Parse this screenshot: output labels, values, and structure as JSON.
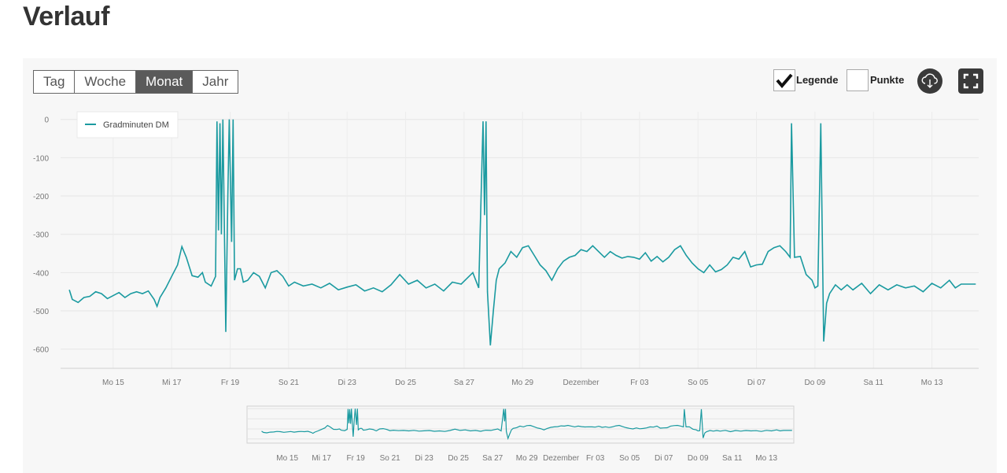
{
  "page": {
    "title": "Verlauf"
  },
  "toolbar": {
    "ranges": [
      "Tag",
      "Woche",
      "Monat",
      "Jahr"
    ],
    "active_range": "Monat",
    "legend_label": "Legende",
    "legend_checked": true,
    "points_label": "Punkte",
    "points_checked": false,
    "download_icon": "cloud-download-icon",
    "fullscreen_icon": "fullscreen-icon"
  },
  "colors": {
    "series": "#1a9aa0",
    "active_button": "#5a5a5a",
    "panel": "#f7f7f7"
  },
  "chart_data": {
    "type": "line",
    "legend": "top-left",
    "grid": true,
    "ylim": [
      -650,
      20
    ],
    "yticks": [
      0,
      -100,
      -200,
      -300,
      -400,
      -500,
      -600
    ],
    "xlim": [
      13.2,
      44.6
    ],
    "x_unit": "day (November 13 = 13, December 1 = 31)",
    "xticks": [
      {
        "x": 15,
        "label": "Mo 15"
      },
      {
        "x": 17,
        "label": "Mi 17"
      },
      {
        "x": 19,
        "label": "Fr 19"
      },
      {
        "x": 21,
        "label": "So 21"
      },
      {
        "x": 23,
        "label": "Di 23"
      },
      {
        "x": 25,
        "label": "Do 25"
      },
      {
        "x": 27,
        "label": "Sa 27"
      },
      {
        "x": 29,
        "label": "Mo 29"
      },
      {
        "x": 31,
        "label": "Dezember"
      },
      {
        "x": 33,
        "label": "Fr 03"
      },
      {
        "x": 35,
        "label": "So 05"
      },
      {
        "x": 37,
        "label": "Di 07"
      },
      {
        "x": 39,
        "label": "Do 09"
      },
      {
        "x": 41,
        "label": "Sa 11"
      },
      {
        "x": 43,
        "label": "Mo 13"
      }
    ],
    "navigator_ticks": [
      "Mo 15",
      "Mi 17",
      "Fr 19",
      "So 21",
      "Di 23",
      "Do 25",
      "Sa 27",
      "Mo 29",
      "Dezember",
      "Fr 03",
      "So 05",
      "Di 07",
      "Do 09",
      "Sa 11",
      "Mo 13"
    ],
    "series": [
      {
        "name": "Gradminuten DM",
        "points": [
          [
            13.5,
            -445
          ],
          [
            13.6,
            -470
          ],
          [
            13.8,
            -478
          ],
          [
            14.0,
            -465
          ],
          [
            14.2,
            -462
          ],
          [
            14.4,
            -450
          ],
          [
            14.6,
            -455
          ],
          [
            14.8,
            -468
          ],
          [
            15.0,
            -460
          ],
          [
            15.2,
            -452
          ],
          [
            15.4,
            -465
          ],
          [
            15.6,
            -455
          ],
          [
            15.8,
            -450
          ],
          [
            16.0,
            -455
          ],
          [
            16.2,
            -448
          ],
          [
            16.4,
            -470
          ],
          [
            16.5,
            -488
          ],
          [
            16.6,
            -465
          ],
          [
            16.8,
            -440
          ],
          [
            17.0,
            -410
          ],
          [
            17.2,
            -380
          ],
          [
            17.35,
            -332
          ],
          [
            17.5,
            -360
          ],
          [
            17.7,
            -408
          ],
          [
            17.9,
            -412
          ],
          [
            18.05,
            -400
          ],
          [
            18.15,
            -425
          ],
          [
            18.35,
            -435
          ],
          [
            18.5,
            -410
          ],
          [
            18.55,
            -5
          ],
          [
            18.6,
            -290
          ],
          [
            18.65,
            -10
          ],
          [
            18.7,
            -300
          ],
          [
            18.75,
            0
          ],
          [
            18.85,
            -555
          ],
          [
            18.92,
            -200
          ],
          [
            18.97,
            0
          ],
          [
            19.05,
            -320
          ],
          [
            19.1,
            0
          ],
          [
            19.15,
            -420
          ],
          [
            19.25,
            -390
          ],
          [
            19.35,
            -390
          ],
          [
            19.45,
            -425
          ],
          [
            19.6,
            -420
          ],
          [
            19.8,
            -400
          ],
          [
            20.0,
            -410
          ],
          [
            20.2,
            -440
          ],
          [
            20.4,
            -400
          ],
          [
            20.6,
            -395
          ],
          [
            20.8,
            -410
          ],
          [
            21.0,
            -435
          ],
          [
            21.2,
            -425
          ],
          [
            21.5,
            -435
          ],
          [
            21.8,
            -430
          ],
          [
            22.1,
            -440
          ],
          [
            22.4,
            -428
          ],
          [
            22.7,
            -445
          ],
          [
            23.0,
            -438
          ],
          [
            23.3,
            -432
          ],
          [
            23.6,
            -448
          ],
          [
            23.9,
            -440
          ],
          [
            24.2,
            -450
          ],
          [
            24.5,
            -432
          ],
          [
            24.8,
            -405
          ],
          [
            25.1,
            -430
          ],
          [
            25.4,
            -420
          ],
          [
            25.7,
            -440
          ],
          [
            26.0,
            -430
          ],
          [
            26.3,
            -448
          ],
          [
            26.6,
            -425
          ],
          [
            26.9,
            -430
          ],
          [
            27.1,
            -415
          ],
          [
            27.3,
            -400
          ],
          [
            27.5,
            -440
          ],
          [
            27.65,
            -5
          ],
          [
            27.7,
            -250
          ],
          [
            27.75,
            -5
          ],
          [
            27.8,
            -450
          ],
          [
            27.9,
            -590
          ],
          [
            28.0,
            -500
          ],
          [
            28.1,
            -420
          ],
          [
            28.2,
            -390
          ],
          [
            28.4,
            -375
          ],
          [
            28.6,
            -345
          ],
          [
            28.8,
            -360
          ],
          [
            29.0,
            -335
          ],
          [
            29.2,
            -330
          ],
          [
            29.4,
            -355
          ],
          [
            29.6,
            -380
          ],
          [
            29.8,
            -395
          ],
          [
            30.0,
            -420
          ],
          [
            30.2,
            -390
          ],
          [
            30.4,
            -370
          ],
          [
            30.6,
            -360
          ],
          [
            30.8,
            -355
          ],
          [
            31.0,
            -340
          ],
          [
            31.2,
            -345
          ],
          [
            31.4,
            -330
          ],
          [
            31.6,
            -345
          ],
          [
            31.8,
            -360
          ],
          [
            32.0,
            -345
          ],
          [
            32.2,
            -355
          ],
          [
            32.4,
            -362
          ],
          [
            32.6,
            -358
          ],
          [
            32.8,
            -360
          ],
          [
            33.0,
            -365
          ],
          [
            33.2,
            -348
          ],
          [
            33.4,
            -370
          ],
          [
            33.6,
            -358
          ],
          [
            33.8,
            -372
          ],
          [
            34.0,
            -360
          ],
          [
            34.2,
            -340
          ],
          [
            34.4,
            -330
          ],
          [
            34.6,
            -355
          ],
          [
            34.8,
            -375
          ],
          [
            35.0,
            -390
          ],
          [
            35.2,
            -400
          ],
          [
            35.4,
            -380
          ],
          [
            35.6,
            -398
          ],
          [
            35.8,
            -392
          ],
          [
            36.0,
            -380
          ],
          [
            36.2,
            -360
          ],
          [
            36.4,
            -365
          ],
          [
            36.6,
            -345
          ],
          [
            36.8,
            -385
          ],
          [
            37.0,
            -380
          ],
          [
            37.2,
            -378
          ],
          [
            37.4,
            -345
          ],
          [
            37.6,
            -335
          ],
          [
            37.8,
            -330
          ],
          [
            38.0,
            -345
          ],
          [
            38.15,
            -360
          ],
          [
            38.2,
            -10
          ],
          [
            38.3,
            -360
          ],
          [
            38.5,
            -358
          ],
          [
            38.7,
            -405
          ],
          [
            38.9,
            -420
          ],
          [
            39.0,
            -440
          ],
          [
            39.1,
            -435
          ],
          [
            39.2,
            -10
          ],
          [
            39.3,
            -580
          ],
          [
            39.4,
            -480
          ],
          [
            39.5,
            -455
          ],
          [
            39.7,
            -432
          ],
          [
            39.9,
            -445
          ],
          [
            40.1,
            -432
          ],
          [
            40.3,
            -445
          ],
          [
            40.6,
            -428
          ],
          [
            40.9,
            -455
          ],
          [
            41.2,
            -432
          ],
          [
            41.5,
            -445
          ],
          [
            41.8,
            -432
          ],
          [
            42.1,
            -440
          ],
          [
            42.4,
            -435
          ],
          [
            42.7,
            -450
          ],
          [
            43.0,
            -428
          ],
          [
            43.3,
            -440
          ],
          [
            43.6,
            -420
          ],
          [
            43.8,
            -440
          ],
          [
            44.0,
            -430
          ],
          [
            44.5,
            -430
          ]
        ]
      }
    ]
  }
}
